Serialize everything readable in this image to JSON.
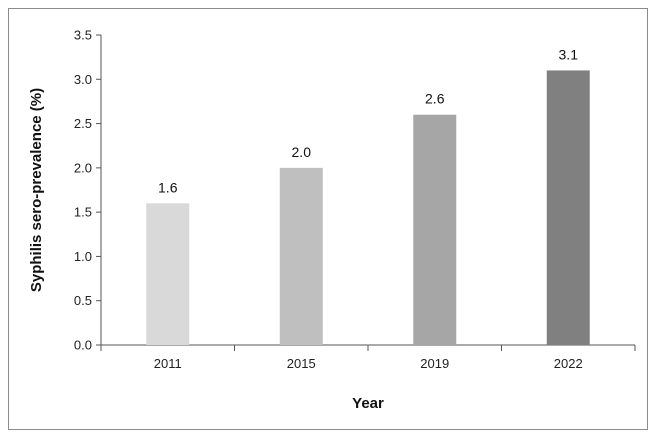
{
  "chart_data": {
    "type": "bar",
    "title": "",
    "xlabel": "Year",
    "ylabel": "Syphilis sero-prevalence (%)",
    "categories": [
      "2011",
      "2015",
      "2019",
      "2022"
    ],
    "values": [
      1.6,
      2.0,
      2.6,
      3.1
    ],
    "data_labels": [
      "1.6",
      "2.0",
      "2.6",
      "3.1"
    ],
    "bar_colors": [
      "#d9d9d9",
      "#bfbfbf",
      "#a6a6a6",
      "#808080"
    ],
    "ylim": [
      0,
      3.5
    ],
    "yticks": [
      "0.0",
      "0.5",
      "1.0",
      "1.5",
      "2.0",
      "2.5",
      "3.0",
      "3.5"
    ],
    "grid": false,
    "legend": "none"
  }
}
